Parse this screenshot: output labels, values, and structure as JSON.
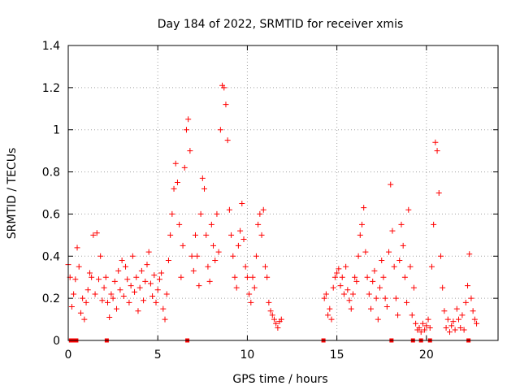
{
  "chart_data": {
    "type": "scatter",
    "title": "Day 184 of 2022, SRMTID for receiver xmis",
    "xlabel": "GPS time / hours",
    "ylabel": "SRMTID / TECUs",
    "xlim": [
      0,
      24
    ],
    "ylim": [
      0,
      1.4
    ],
    "x_ticks": [
      "0",
      "5",
      "10",
      "15",
      "20"
    ],
    "y_ticks": [
      "0",
      "0.2",
      "0.4",
      "0.6",
      "0.8",
      "1",
      "1.2",
      "1.4"
    ],
    "grid": true,
    "marker": "+",
    "color": "#ff0000",
    "series": [
      {
        "name": "SRMTID",
        "points": [
          [
            0.0,
            0.36
          ],
          [
            0.1,
            0.3
          ],
          [
            0.2,
            0.16
          ],
          [
            0.3,
            0.22
          ],
          [
            0.4,
            0.29
          ],
          [
            0.5,
            0.44
          ],
          [
            0.6,
            0.35
          ],
          [
            0.7,
            0.13
          ],
          [
            0.8,
            0.2
          ],
          [
            0.9,
            0.1
          ],
          [
            1.0,
            0.18
          ],
          [
            1.1,
            0.24
          ],
          [
            1.2,
            0.32
          ],
          [
            1.3,
            0.3
          ],
          [
            1.4,
            0.5
          ],
          [
            1.5,
            0.22
          ],
          [
            1.6,
            0.51
          ],
          [
            1.7,
            0.29
          ],
          [
            1.8,
            0.4
          ],
          [
            1.9,
            0.19
          ],
          [
            2.0,
            0.25
          ],
          [
            2.1,
            0.3
          ],
          [
            2.2,
            0.18
          ],
          [
            2.3,
            0.11
          ],
          [
            2.4,
            0.22
          ],
          [
            2.5,
            0.2
          ],
          [
            2.6,
            0.28
          ],
          [
            2.7,
            0.15
          ],
          [
            2.8,
            0.33
          ],
          [
            2.9,
            0.24
          ],
          [
            3.0,
            0.38
          ],
          [
            3.1,
            0.21
          ],
          [
            3.2,
            0.35
          ],
          [
            3.3,
            0.29
          ],
          [
            3.4,
            0.18
          ],
          [
            3.5,
            0.26
          ],
          [
            3.6,
            0.4
          ],
          [
            3.7,
            0.23
          ],
          [
            3.8,
            0.3
          ],
          [
            3.9,
            0.14
          ],
          [
            4.0,
            0.25
          ],
          [
            4.1,
            0.33
          ],
          [
            4.2,
            0.19
          ],
          [
            4.3,
            0.28
          ],
          [
            4.4,
            0.36
          ],
          [
            4.5,
            0.42
          ],
          [
            4.6,
            0.27
          ],
          [
            4.7,
            0.21
          ],
          [
            4.8,
            0.31
          ],
          [
            4.9,
            0.18
          ],
          [
            5.0,
            0.24
          ],
          [
            5.1,
            0.29
          ],
          [
            5.2,
            0.32
          ],
          [
            5.3,
            0.15
          ],
          [
            5.4,
            0.1
          ],
          [
            5.5,
            0.22
          ],
          [
            5.6,
            0.38
          ],
          [
            5.7,
            0.5
          ],
          [
            5.8,
            0.6
          ],
          [
            5.9,
            0.72
          ],
          [
            6.0,
            0.84
          ],
          [
            6.1,
            0.75
          ],
          [
            6.2,
            0.55
          ],
          [
            6.3,
            0.3
          ],
          [
            6.4,
            0.45
          ],
          [
            6.5,
            0.82
          ],
          [
            6.6,
            1.0
          ],
          [
            6.7,
            1.05
          ],
          [
            6.8,
            0.9
          ],
          [
            6.9,
            0.4
          ],
          [
            7.0,
            0.33
          ],
          [
            7.1,
            0.5
          ],
          [
            7.2,
            0.4
          ],
          [
            7.3,
            0.26
          ],
          [
            7.4,
            0.6
          ],
          [
            7.5,
            0.77
          ],
          [
            7.6,
            0.72
          ],
          [
            7.7,
            0.5
          ],
          [
            7.8,
            0.35
          ],
          [
            7.9,
            0.28
          ],
          [
            8.0,
            0.55
          ],
          [
            8.1,
            0.45
          ],
          [
            8.2,
            0.38
          ],
          [
            8.3,
            0.6
          ],
          [
            8.4,
            0.42
          ],
          [
            8.5,
            1.0
          ],
          [
            8.6,
            1.21
          ],
          [
            8.7,
            1.2
          ],
          [
            8.8,
            1.12
          ],
          [
            8.9,
            0.95
          ],
          [
            9.0,
            0.62
          ],
          [
            9.1,
            0.5
          ],
          [
            9.2,
            0.4
          ],
          [
            9.3,
            0.3
          ],
          [
            9.4,
            0.25
          ],
          [
            9.5,
            0.45
          ],
          [
            9.6,
            0.52
          ],
          [
            9.7,
            0.65
          ],
          [
            9.8,
            0.48
          ],
          [
            9.9,
            0.35
          ],
          [
            10.0,
            0.3
          ],
          [
            10.1,
            0.22
          ],
          [
            10.2,
            0.18
          ],
          [
            10.3,
            0.3
          ],
          [
            10.4,
            0.25
          ],
          [
            10.5,
            0.4
          ],
          [
            10.6,
            0.55
          ],
          [
            10.7,
            0.6
          ],
          [
            10.8,
            0.5
          ],
          [
            10.9,
            0.62
          ],
          [
            11.0,
            0.35
          ],
          [
            11.1,
            0.3
          ],
          [
            11.2,
            0.18
          ],
          [
            11.3,
            0.14
          ],
          [
            11.4,
            0.12
          ],
          [
            11.5,
            0.1
          ],
          [
            11.6,
            0.08
          ],
          [
            11.7,
            0.06
          ],
          [
            11.8,
            0.09
          ],
          [
            11.9,
            0.1
          ],
          [
            14.3,
            0.2
          ],
          [
            14.4,
            0.22
          ],
          [
            14.5,
            0.12
          ],
          [
            14.6,
            0.15
          ],
          [
            14.7,
            0.1
          ],
          [
            14.8,
            0.25
          ],
          [
            14.9,
            0.3
          ],
          [
            15.0,
            0.32
          ],
          [
            15.1,
            0.34
          ],
          [
            15.2,
            0.26
          ],
          [
            15.3,
            0.3
          ],
          [
            15.4,
            0.22
          ],
          [
            15.5,
            0.35
          ],
          [
            15.6,
            0.24
          ],
          [
            15.7,
            0.19
          ],
          [
            15.8,
            0.15
          ],
          [
            15.9,
            0.22
          ],
          [
            16.0,
            0.3
          ],
          [
            16.1,
            0.28
          ],
          [
            16.2,
            0.4
          ],
          [
            16.3,
            0.5
          ],
          [
            16.4,
            0.55
          ],
          [
            16.5,
            0.63
          ],
          [
            16.6,
            0.42
          ],
          [
            16.7,
            0.3
          ],
          [
            16.8,
            0.22
          ],
          [
            16.9,
            0.15
          ],
          [
            17.0,
            0.28
          ],
          [
            17.1,
            0.33
          ],
          [
            17.2,
            0.2
          ],
          [
            17.3,
            0.1
          ],
          [
            17.4,
            0.25
          ],
          [
            17.5,
            0.38
          ],
          [
            17.6,
            0.3
          ],
          [
            17.7,
            0.2
          ],
          [
            17.8,
            0.16
          ],
          [
            17.9,
            0.42
          ],
          [
            18.0,
            0.74
          ],
          [
            18.1,
            0.52
          ],
          [
            18.2,
            0.35
          ],
          [
            18.3,
            0.2
          ],
          [
            18.4,
            0.12
          ],
          [
            18.5,
            0.38
          ],
          [
            18.6,
            0.55
          ],
          [
            18.7,
            0.45
          ],
          [
            18.8,
            0.3
          ],
          [
            18.9,
            0.18
          ],
          [
            19.0,
            0.62
          ],
          [
            19.1,
            0.35
          ],
          [
            19.2,
            0.12
          ],
          [
            19.3,
            0.25
          ],
          [
            19.4,
            0.08
          ],
          [
            19.5,
            0.05
          ],
          [
            19.6,
            0.06
          ],
          [
            19.7,
            0.04
          ],
          [
            19.8,
            0.08
          ],
          [
            19.9,
            0.05
          ],
          [
            20.0,
            0.07
          ],
          [
            20.1,
            0.1
          ],
          [
            20.2,
            0.06
          ],
          [
            20.3,
            0.35
          ],
          [
            20.4,
            0.55
          ],
          [
            20.5,
            0.94
          ],
          [
            20.6,
            0.9
          ],
          [
            20.7,
            0.7
          ],
          [
            20.8,
            0.4
          ],
          [
            20.9,
            0.25
          ],
          [
            21.0,
            0.14
          ],
          [
            21.1,
            0.06
          ],
          [
            21.2,
            0.1
          ],
          [
            21.3,
            0.04
          ],
          [
            21.4,
            0.07
          ],
          [
            21.5,
            0.09
          ],
          [
            21.6,
            0.05
          ],
          [
            21.7,
            0.15
          ],
          [
            21.8,
            0.1
          ],
          [
            21.9,
            0.06
          ],
          [
            22.0,
            0.12
          ],
          [
            22.1,
            0.05
          ],
          [
            22.2,
            0.18
          ],
          [
            22.3,
            0.26
          ],
          [
            22.4,
            0.41
          ],
          [
            22.5,
            0.2
          ],
          [
            22.6,
            0.14
          ],
          [
            22.7,
            0.1
          ],
          [
            22.8,
            0.08
          ]
        ]
      }
    ],
    "zero_points": [
      0.15,
      0.3,
      0.35,
      0.45,
      2.15,
      6.65,
      14.25,
      18.05,
      19.25,
      19.7,
      20.2,
      22.35
    ]
  }
}
